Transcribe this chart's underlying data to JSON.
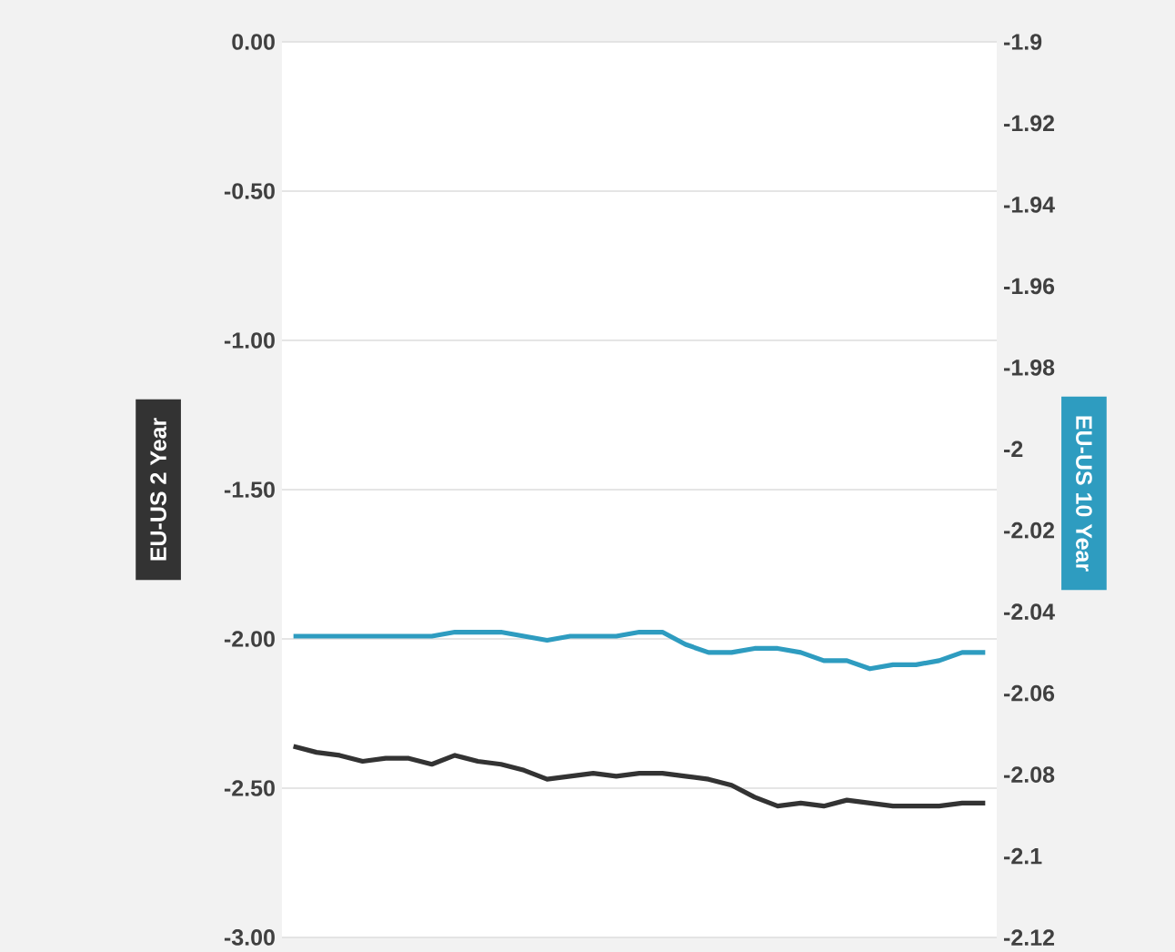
{
  "chart_data": {
    "type": "line",
    "ylabel": "EU-US 2 Year",
    "y2label": "EU-US 10 Year",
    "categories": [
      null,
      null,
      null,
      null,
      null,
      null,
      null,
      null,
      null,
      null,
      null,
      null,
      null,
      null,
      null,
      null,
      null,
      null,
      null,
      null,
      null,
      null,
      null,
      null,
      null,
      null,
      null,
      null,
      null,
      null,
      null
    ],
    "series": [
      {
        "color": "#333333",
        "axis": "y",
        "values": [
          -2.36,
          -2.38,
          -2.39,
          -2.41,
          -2.4,
          -2.4,
          -2.42,
          -2.39,
          -2.41,
          -2.42,
          -2.44,
          -2.47,
          -2.46,
          -2.45,
          -2.46,
          -2.45,
          -2.45,
          -2.46,
          -2.47,
          -2.49,
          -2.53,
          -2.56,
          -2.55,
          -2.56,
          -2.54,
          -2.55,
          -2.56,
          -2.56,
          -2.56,
          -2.55,
          -2.55
        ]
      },
      {
        "color": "#2e9cc0",
        "axis": "y2",
        "values": [
          -2.046,
          -2.046,
          -2.046,
          -2.046,
          -2.046,
          -2.046,
          -2.046,
          -2.045,
          -2.045,
          -2.045,
          -2.046,
          -2.047,
          -2.046,
          -2.046,
          -2.046,
          -2.045,
          -2.045,
          -2.048,
          -2.05,
          -2.05,
          -2.049,
          -2.049,
          -2.05,
          -2.052,
          -2.052,
          -2.054,
          -2.053,
          -2.053,
          -2.052,
          -2.05,
          -2.05
        ]
      }
    ],
    "ylim": [
      -3,
      0
    ],
    "yticks": [
      {
        "value": 0,
        "label": "0.00"
      },
      {
        "value": -0.5,
        "label": "-0.50"
      },
      {
        "value": -1,
        "label": "-1.00"
      },
      {
        "value": -1.5,
        "label": "-1.50"
      },
      {
        "value": -2,
        "label": "-2.00"
      },
      {
        "value": -2.5,
        "label": "-2.50"
      },
      {
        "value": -3,
        "label": "-3.00"
      }
    ],
    "y2lim": [
      -2.12,
      -1.9
    ],
    "y2ticks": [
      -1.9,
      -1.92,
      -1.94,
      -1.96,
      -1.98,
      -2,
      -2.02,
      -2.04,
      -2.06,
      -2.08,
      -2.1,
      -2.12
    ],
    "grid": "y",
    "tick_labels": "y",
    "marker": "none",
    "line_style": "solid"
  }
}
